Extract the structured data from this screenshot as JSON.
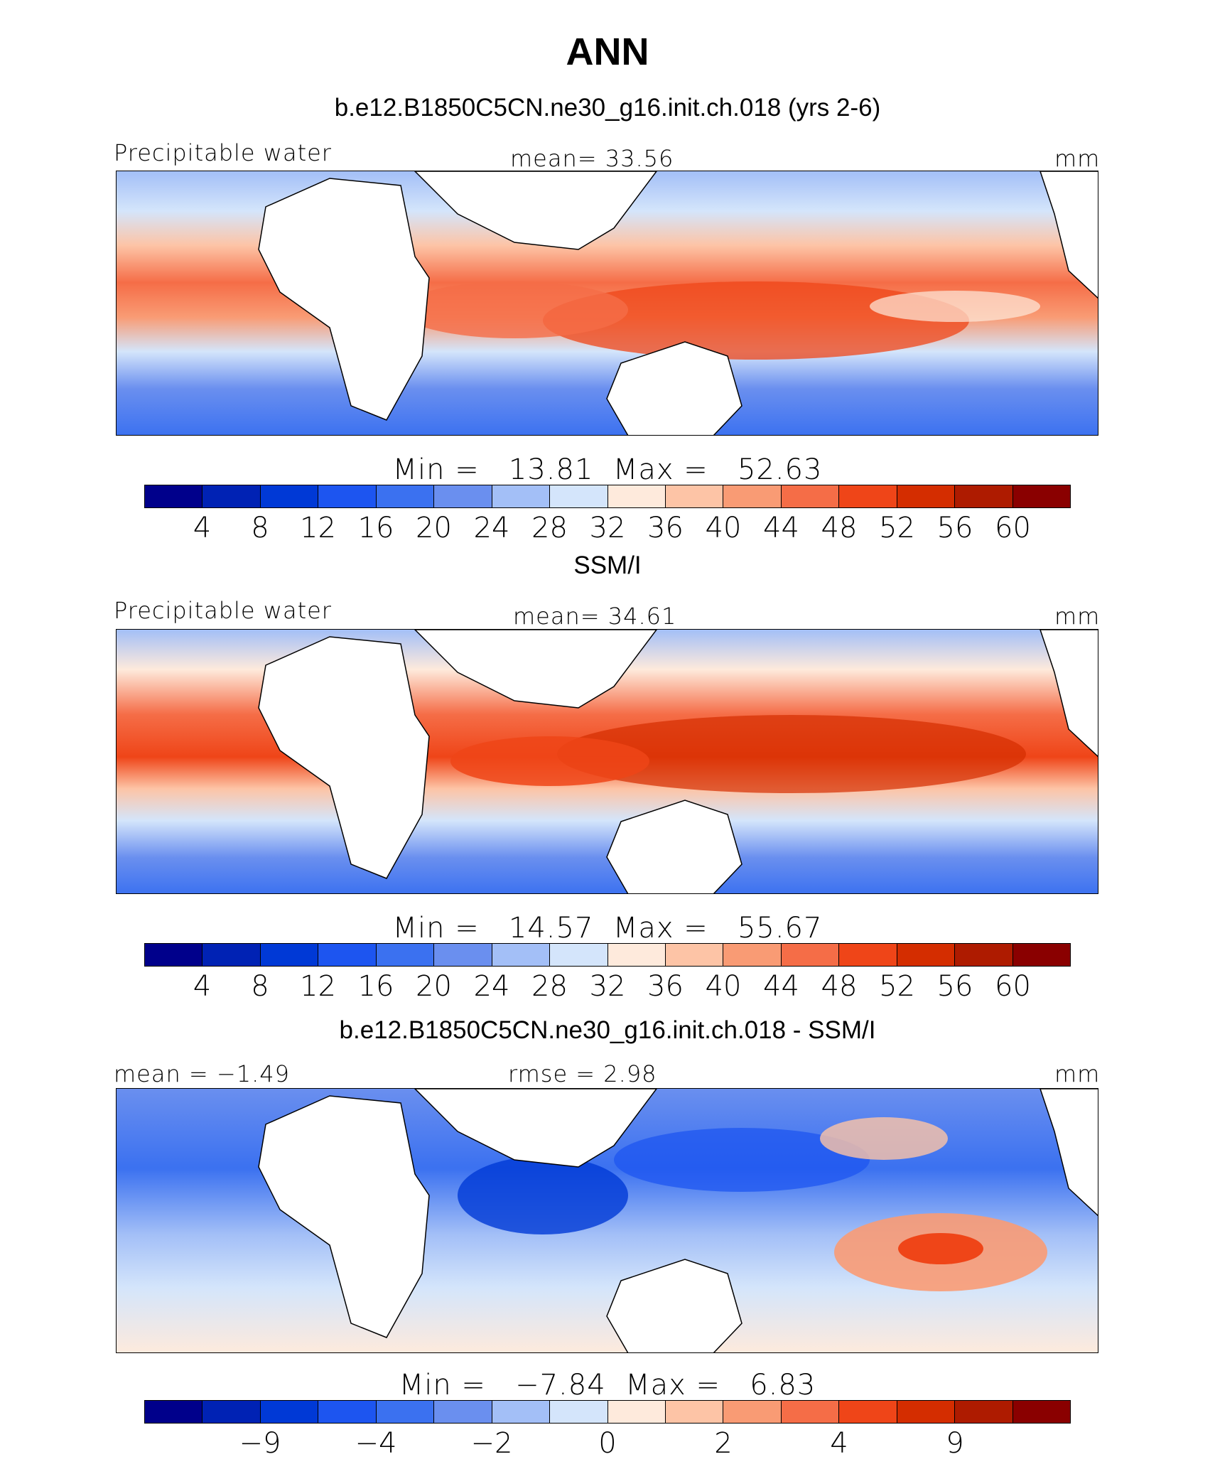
{
  "chart_data": {
    "type": "heatmap",
    "title": "ANN",
    "colorbar_colors": [
      "#00008b",
      "#0022b4",
      "#0039d6",
      "#1d55f0",
      "#3b71f0",
      "#6a8fef",
      "#a3bff7",
      "#d4e5fb",
      "#feeadc",
      "#fdc4a6",
      "#f99b74",
      "#f56d47",
      "#ef4518",
      "#d42d00",
      "#ae1b00",
      "#8a0000"
    ],
    "panels": [
      {
        "title": "b.e12.B1850C5CN.ne30_g16.init.ch.018 (yrs 2-6)",
        "left_label": "Precipitable water",
        "center_label": "mean=  33.56",
        "units": "mm",
        "min_label": "Min",
        "min_value": "13.81",
        "max_label": "Max",
        "max_value": "52.63",
        "levels": [
          "4",
          "8",
          "12",
          "16",
          "20",
          "24",
          "28",
          "32",
          "36",
          "40",
          "44",
          "48",
          "52",
          "56",
          "60"
        ]
      },
      {
        "title": "SSM/I",
        "left_label": "Precipitable water",
        "center_label": "mean=  34.61",
        "units": "mm",
        "min_label": "Min",
        "min_value": "14.57",
        "max_label": "Max",
        "max_value": "55.67",
        "levels": [
          "4",
          "8",
          "12",
          "16",
          "20",
          "24",
          "28",
          "32",
          "36",
          "40",
          "44",
          "48",
          "52",
          "56",
          "60"
        ]
      },
      {
        "title": "b.e12.B1850C5CN.ne30_g16.init.ch.018 - SSM/I",
        "left_label": "mean =  −1.49",
        "center_label": "rmse =    2.98",
        "units": "mm",
        "min_label": "Min",
        "min_value": "−7.84",
        "max_label": "Max",
        "max_value": "6.83",
        "levels": [
          "−9",
          "",
          "−4",
          "",
          "−2",
          "",
          "0",
          "",
          "2",
          "",
          "4",
          "",
          "9"
        ],
        "levels_note": "diff colorbar shows only every other boundary label"
      }
    ]
  }
}
